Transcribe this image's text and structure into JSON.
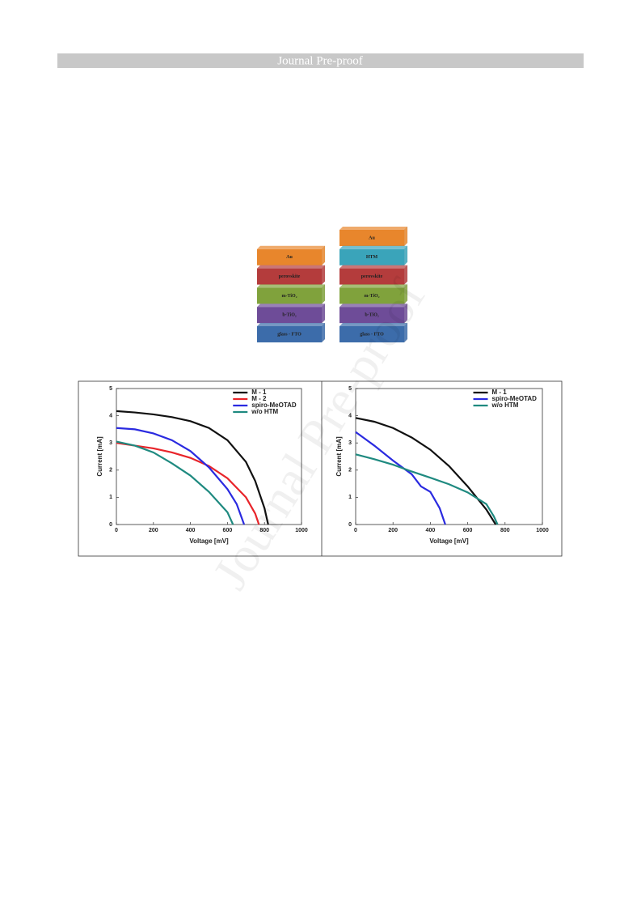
{
  "header": {
    "title": "Journal Pre-proof"
  },
  "watermark": "Journal Pre-proof",
  "diagram": {
    "stacks": [
      {
        "layers": [
          {
            "label": "Au",
            "color": "#e8862c"
          },
          {
            "label": "perovskite",
            "color": "#b43c3c"
          },
          {
            "label": "m-TiO₂",
            "color": "#80a23c"
          },
          {
            "label": "b-TiO₂",
            "color": "#6e4c98"
          },
          {
            "label": "glass - FTO",
            "color": "#3c6caa"
          }
        ]
      },
      {
        "layers": [
          {
            "label": "Au",
            "color": "#e8862c"
          },
          {
            "label": "HTM",
            "color": "#3aa4ba"
          },
          {
            "label": "perovskite",
            "color": "#b43c3c"
          },
          {
            "label": "m-TiO₂",
            "color": "#80a23c"
          },
          {
            "label": "b-TiO₂",
            "color": "#6e4c98"
          },
          {
            "label": "glass - FTO",
            "color": "#3c6caa"
          }
        ]
      }
    ]
  },
  "chart_data": [
    {
      "type": "line",
      "x_label": "Voltage [mV]",
      "y_label": "Current [mA]",
      "xlim": [
        0,
        1000
      ],
      "xticks": [
        0,
        200,
        400,
        600,
        800,
        1000
      ],
      "ylim": [
        0,
        5
      ],
      "yticks": [
        0,
        1,
        2,
        3,
        4,
        5
      ],
      "legend": "top-right",
      "series": [
        {
          "name": "M - 1",
          "color": "#111111",
          "x": [
            0,
            100,
            200,
            300,
            400,
            500,
            600,
            700,
            750,
            800,
            820
          ],
          "values": [
            4.17,
            4.12,
            4.05,
            3.95,
            3.8,
            3.55,
            3.1,
            2.3,
            1.6,
            0.6,
            0
          ]
        },
        {
          "name": "M - 2",
          "color": "#e8242a",
          "x": [
            0,
            100,
            200,
            300,
            400,
            500,
            600,
            700,
            750,
            770
          ],
          "values": [
            3.0,
            2.9,
            2.8,
            2.65,
            2.45,
            2.15,
            1.7,
            1.0,
            0.4,
            0
          ]
        },
        {
          "name": "spiro-MeOTAD",
          "color": "#2a2ae0",
          "x": [
            0,
            100,
            200,
            300,
            400,
            500,
            600,
            650,
            690
          ],
          "values": [
            3.55,
            3.5,
            3.35,
            3.1,
            2.7,
            2.1,
            1.3,
            0.75,
            0
          ]
        },
        {
          "name": "w/o HTM",
          "color": "#1f8a80",
          "x": [
            0,
            100,
            200,
            300,
            400,
            500,
            600,
            630
          ],
          "values": [
            3.05,
            2.9,
            2.65,
            2.25,
            1.8,
            1.2,
            0.45,
            0
          ]
        }
      ]
    },
    {
      "type": "line",
      "x_label": "Voltage [mV]",
      "y_label": "Current [mA]",
      "xlim": [
        0,
        1000
      ],
      "xticks": [
        0,
        200,
        400,
        600,
        800,
        1000
      ],
      "ylim": [
        0,
        5
      ],
      "yticks": [
        0,
        1,
        2,
        3,
        4,
        5
      ],
      "legend": "top-right",
      "series": [
        {
          "name": "M - 1",
          "color": "#111111",
          "x": [
            0,
            100,
            200,
            300,
            400,
            500,
            600,
            700,
            750
          ],
          "values": [
            3.92,
            3.78,
            3.55,
            3.2,
            2.75,
            2.15,
            1.4,
            0.55,
            0
          ]
        },
        {
          "name": "spiro-MeOTAD",
          "color": "#2a2ae0",
          "x": [
            0,
            50,
            100,
            200,
            300,
            350,
            400,
            450,
            480
          ],
          "values": [
            3.4,
            3.15,
            2.9,
            2.35,
            1.85,
            1.4,
            1.2,
            0.6,
            0
          ]
        },
        {
          "name": "w/o HTM",
          "color": "#1f8a80",
          "x": [
            0,
            100,
            200,
            300,
            400,
            500,
            600,
            700,
            740,
            760
          ],
          "values": [
            2.58,
            2.4,
            2.2,
            1.95,
            1.72,
            1.48,
            1.18,
            0.75,
            0.3,
            0
          ]
        }
      ]
    }
  ]
}
